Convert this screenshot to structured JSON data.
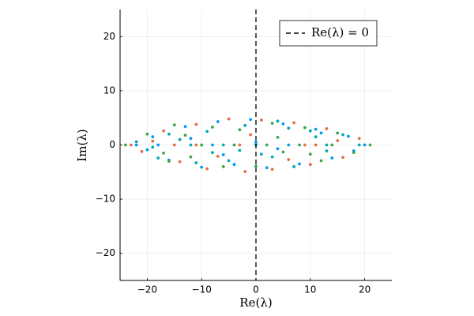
{
  "chart_data": {
    "type": "scatter",
    "xlabel": "Re(λ)",
    "ylabel": "Im(λ)",
    "xlim": [
      -25,
      25
    ],
    "ylim": [
      -25,
      25
    ],
    "xticks": [
      {
        "value": -20,
        "label": "−20"
      },
      {
        "value": -10,
        "label": "−10"
      },
      0,
      10,
      20
    ],
    "yticks": [
      {
        "value": -20,
        "label": "−20"
      },
      {
        "value": -10,
        "label": "−10"
      },
      0,
      10,
      20
    ],
    "grid": true,
    "legend": "top-right",
    "vline": {
      "name": "Re(λ) = 0",
      "x": 0,
      "color": "#000000",
      "style": "dashed"
    },
    "series": [
      {
        "color": "#009AFA",
        "x": [
          -22,
          -19,
          -16,
          -13,
          -10,
          -7,
          -4,
          -1,
          2,
          5,
          8,
          11,
          14,
          17,
          20,
          -18,
          -12,
          -6,
          0,
          6,
          12,
          18,
          -20,
          -8,
          4
        ],
        "values": [
          0,
          1.5,
          -2.8,
          3.4,
          -4.1,
          4.3,
          -3.6,
          4.7,
          -4.2,
          3.9,
          -3.5,
          2.9,
          -2.4,
          1.6,
          0,
          0,
          1.2,
          -1.8,
          0.5,
          0,
          2.2,
          -1.1,
          -0.9,
          0,
          -0.7
        ]
      },
      {
        "color": "#E36F47",
        "x": [
          -23,
          -21,
          -17,
          -14,
          -11,
          -9,
          -5,
          -2,
          1,
          3,
          7,
          10,
          13,
          16,
          19,
          -15,
          -3,
          9,
          15,
          -7,
          -19,
          -1,
          6,
          11,
          -11
        ],
        "values": [
          0,
          -1.2,
          2.6,
          -3.1,
          3.8,
          -4.4,
          4.8,
          -4.9,
          4.6,
          -4.5,
          4.1,
          -3.6,
          3.0,
          -2.3,
          1.2,
          0,
          0,
          0,
          0.8,
          -2.1,
          0.7,
          1.9,
          -2.7,
          0,
          0
        ]
      },
      {
        "color": "#3EA44E",
        "x": [
          -24,
          -20,
          -17,
          -15,
          -12,
          -8,
          -6,
          -3,
          0,
          3,
          5,
          9,
          12,
          15,
          18,
          21,
          -10,
          -4,
          2,
          8,
          14,
          -16,
          -13,
          4,
          10
        ],
        "values": [
          0,
          2.0,
          -1.5,
          3.7,
          -2.2,
          3.3,
          -4.0,
          2.8,
          -3.9,
          4.0,
          -1.3,
          3.2,
          -2.9,
          2.2,
          -1.4,
          0,
          0,
          0,
          0,
          0,
          0,
          -3.0,
          1.8,
          1.4,
          -1.7
        ]
      },
      {
        "color": "#00AAAE",
        "x": [
          -22,
          -18,
          -14,
          -11,
          -9,
          -5,
          -2,
          1,
          4,
          7,
          10,
          13,
          16,
          -19,
          -12,
          -6,
          0,
          6,
          13,
          19,
          -3,
          3,
          -8,
          11,
          -16
        ],
        "values": [
          0.6,
          -2.4,
          1.0,
          -3.3,
          2.5,
          -2.9,
          3.6,
          -1.7,
          4.4,
          -4.0,
          2.6,
          -1.1,
          1.9,
          -0.4,
          0,
          0,
          0,
          3.1,
          0,
          0,
          -1.0,
          -2.2,
          -1.4,
          1.5,
          2.0
        ]
      }
    ]
  }
}
